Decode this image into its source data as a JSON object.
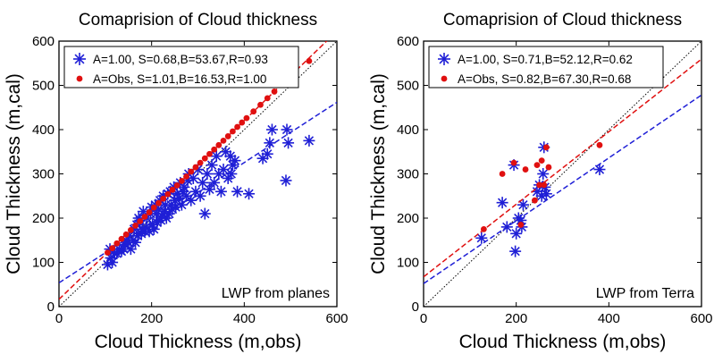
{
  "chart_data": [
    {
      "type": "scatter",
      "title": "Comaprision of Cloud thickness",
      "xlabel": "Cloud Thickness (m,obs)",
      "ylabel": "Cloud Thickness (m,cal)",
      "xlim": [
        0,
        600
      ],
      "ylim": [
        0,
        600
      ],
      "xticks": [
        0,
        200,
        400,
        600
      ],
      "yticks": [
        0,
        100,
        200,
        300,
        400,
        500,
        600
      ],
      "annotation": "LWP from planes",
      "legend_position": "top-left",
      "series": [
        {
          "name": "A=1.00, S=0.68,B=53.67,R=0.93",
          "marker": "asterisk",
          "color": "#1f1fd6",
          "fit": {
            "slope": 0.68,
            "intercept": 53.67,
            "x_range": [
              0,
              600
            ]
          },
          "x": [
            105,
            110,
            112,
            115,
            118,
            120,
            125,
            130,
            135,
            140,
            142,
            145,
            150,
            152,
            155,
            160,
            162,
            165,
            168,
            170,
            172,
            175,
            178,
            180,
            182,
            185,
            188,
            190,
            195,
            198,
            200,
            202,
            205,
            208,
            210,
            212,
            215,
            218,
            220,
            222,
            225,
            228,
            230,
            232,
            235,
            238,
            240,
            242,
            245,
            248,
            250,
            252,
            255,
            260,
            262,
            265,
            268,
            270,
            275,
            278,
            280,
            285,
            290,
            295,
            300,
            305,
            310,
            315,
            320,
            325,
            330,
            335,
            340,
            345,
            350,
            355,
            360,
            365,
            370,
            372,
            375,
            380,
            385,
            410,
            440,
            450,
            455,
            460,
            490,
            492,
            495,
            540
          ],
          "y": [
            95,
            130,
            110,
            100,
            125,
            120,
            120,
            130,
            125,
            130,
            140,
            150,
            145,
            160,
            130,
            150,
            175,
            145,
            185,
            160,
            200,
            195,
            165,
            175,
            215,
            170,
            180,
            200,
            170,
            210,
            225,
            185,
            175,
            230,
            210,
            190,
            220,
            240,
            195,
            205,
            250,
            215,
            230,
            200,
            255,
            210,
            260,
            230,
            220,
            270,
            240,
            225,
            255,
            245,
            280,
            230,
            260,
            270,
            250,
            285,
            300,
            240,
            290,
            260,
            310,
            250,
            280,
            210,
            300,
            265,
            320,
            280,
            340,
            300,
            260,
            310,
            350,
            290,
            340,
            300,
            320,
            330,
            260,
            255,
            335,
            345,
            370,
            400,
            285,
            400,
            370,
            375
          ]
        },
        {
          "name": "A=Obs, S=1.01,B=16.53,R=1.00",
          "marker": "dot",
          "color": "#e01010",
          "fit": {
            "slope": 1.01,
            "intercept": 16.53,
            "x_range": [
              0,
              600
            ]
          },
          "x": [
            105,
            115,
            125,
            135,
            145,
            155,
            165,
            175,
            185,
            195,
            205,
            215,
            225,
            235,
            245,
            255,
            265,
            275,
            285,
            295,
            305,
            315,
            325,
            335,
            345,
            355,
            365,
            375,
            385,
            395,
            405,
            420,
            435,
            450,
            465,
            480,
            490,
            495,
            540
          ],
          "y": [
            122,
            132,
            143,
            153,
            163,
            173,
            183,
            193,
            203,
            213,
            224,
            234,
            244,
            254,
            264,
            274,
            284,
            294,
            305,
            315,
            325,
            335,
            345,
            355,
            365,
            375,
            385,
            396,
            406,
            416,
            426,
            441,
            456,
            471,
            486,
            501,
            512,
            522,
            555
          ]
        }
      ]
    },
    {
      "type": "scatter",
      "title": "Comaprision of Cloud thickness",
      "xlabel": "Cloud Thickness (m,obs)",
      "ylabel": "Cloud Thickness (m,cal)",
      "xlim": [
        0,
        600
      ],
      "ylim": [
        0,
        600
      ],
      "xticks": [
        0,
        200,
        400,
        600
      ],
      "yticks": [
        0,
        100,
        200,
        300,
        400,
        500,
        600
      ],
      "annotation": "LWP from Terra",
      "legend_position": "top-left",
      "series": [
        {
          "name": "A=1.00, S=0.71,B=52.12,R=0.62",
          "marker": "asterisk",
          "color": "#1f1fd6",
          "fit": {
            "slope": 0.71,
            "intercept": 52.12,
            "x_range": [
              0,
              600
            ]
          },
          "x": [
            125,
            170,
            180,
            195,
            198,
            200,
            205,
            210,
            212,
            215,
            245,
            250,
            255,
            258,
            260,
            262,
            265,
            380
          ],
          "y": [
            155,
            235,
            180,
            320,
            125,
            165,
            200,
            195,
            180,
            230,
            260,
            275,
            250,
            300,
            360,
            270,
            255,
            310
          ]
        },
        {
          "name": "A=Obs, S=0.82,B=67.30,R=0.68",
          "marker": "dot",
          "color": "#e01010",
          "fit": {
            "slope": 0.82,
            "intercept": 67.3,
            "x_range": [
              0,
              600
            ]
          },
          "x": [
            130,
            170,
            195,
            210,
            220,
            240,
            245,
            250,
            255,
            260,
            265,
            270,
            380
          ],
          "y": [
            175,
            300,
            325,
            185,
            310,
            240,
            320,
            275,
            330,
            275,
            360,
            315,
            365
          ]
        }
      ]
    }
  ]
}
